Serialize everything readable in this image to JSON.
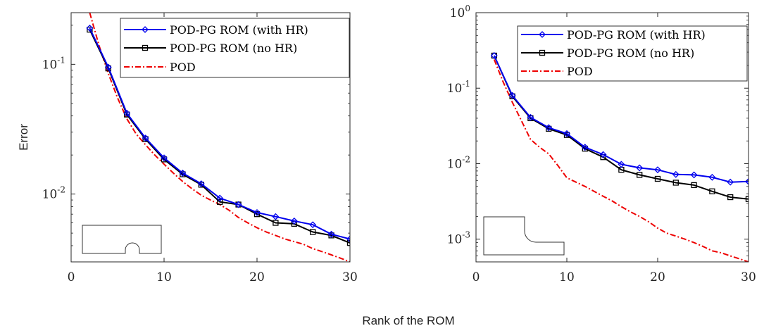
{
  "figure": {
    "ylabel": "Error",
    "xlabel": "Rank of the ROM"
  },
  "legend_labels": [
    "POD-PG ROM (with HR)",
    "POD-PG ROM (no HR)",
    "POD"
  ],
  "colors": {
    "with_hr": "#0000ee",
    "no_hr": "#000000",
    "pod": "#ee0000",
    "axes": "#262626"
  },
  "chart_data": [
    {
      "type": "line",
      "scale_y": "log",
      "xlim": [
        0,
        30
      ],
      "ylim": [
        0.003,
        0.25
      ],
      "xticks": [
        0,
        10,
        20,
        30
      ],
      "yticks": [
        {
          "value": 0.01,
          "exp": "-2"
        },
        {
          "value": 0.1,
          "exp": "-1"
        }
      ],
      "legend_placement": "top-right",
      "grid": false,
      "inset": "plate-with-semicircular-notch",
      "series": [
        {
          "name": "POD-PG ROM (with HR)",
          "style": "blue-diamond",
          "x": [
            2,
            4,
            6,
            8,
            10,
            12,
            14,
            16,
            18,
            20,
            22,
            24,
            26,
            28,
            30
          ],
          "y": [
            0.19,
            0.095,
            0.042,
            0.027,
            0.019,
            0.0145,
            0.012,
            0.0093,
            0.0083,
            0.0072,
            0.0067,
            0.0062,
            0.0058,
            0.0049,
            0.0045
          ]
        },
        {
          "name": "POD-PG ROM (no HR)",
          "style": "black-square",
          "x": [
            2,
            4,
            6,
            8,
            10,
            12,
            14,
            16,
            18,
            20,
            22,
            24,
            26,
            28,
            30
          ],
          "y": [
            0.185,
            0.093,
            0.041,
            0.0265,
            0.0185,
            0.0142,
            0.0118,
            0.0087,
            0.0083,
            0.007,
            0.006,
            0.0059,
            0.0051,
            0.0048,
            0.0042
          ]
        },
        {
          "name": "POD",
          "style": "red-dashdot",
          "x": [
            2,
            3,
            4,
            5,
            6,
            7,
            8,
            9,
            10,
            11,
            12,
            13,
            14,
            15,
            16,
            17,
            18,
            19,
            20,
            21,
            22,
            23,
            24,
            25,
            26,
            27,
            28,
            29,
            30
          ],
          "y": [
            0.25,
            0.14,
            0.085,
            0.055,
            0.038,
            0.029,
            0.024,
            0.02,
            0.017,
            0.0145,
            0.0125,
            0.011,
            0.0098,
            0.009,
            0.0083,
            0.0075,
            0.0066,
            0.006,
            0.0055,
            0.0051,
            0.0048,
            0.0045,
            0.0043,
            0.0041,
            0.0038,
            0.0036,
            0.0034,
            0.0032,
            0.003
          ]
        }
      ]
    },
    {
      "type": "line",
      "scale_y": "log",
      "xlim": [
        0,
        30
      ],
      "ylim": [
        0.0005,
        1
      ],
      "xticks": [
        0,
        10,
        20,
        30
      ],
      "yticks": [
        {
          "value": 0.001,
          "exp": "-3"
        },
        {
          "value": 0.01,
          "exp": "-2"
        },
        {
          "value": 0.1,
          "exp": "-1"
        },
        {
          "value": 1,
          "exp": "0"
        }
      ],
      "legend_placement": "top-right",
      "grid": false,
      "inset": "stepped-plate-with-fillet",
      "series": [
        {
          "name": "POD-PG ROM (with HR)",
          "style": "blue-diamond",
          "x": [
            2,
            4,
            6,
            8,
            10,
            12,
            14,
            16,
            18,
            20,
            22,
            24,
            26,
            28,
            30
          ],
          "y": [
            0.27,
            0.08,
            0.041,
            0.03,
            0.025,
            0.0165,
            0.0132,
            0.0098,
            0.0088,
            0.0083,
            0.0072,
            0.0071,
            0.0066,
            0.0057,
            0.0058
          ]
        },
        {
          "name": "POD-PG ROM (no HR)",
          "style": "black-square",
          "x": [
            2,
            4,
            6,
            8,
            10,
            12,
            14,
            16,
            18,
            20,
            22,
            24,
            26,
            28,
            30
          ],
          "y": [
            0.27,
            0.078,
            0.04,
            0.029,
            0.024,
            0.0158,
            0.0122,
            0.0083,
            0.0071,
            0.0063,
            0.0056,
            0.0052,
            0.0043,
            0.0036,
            0.0034
          ]
        },
        {
          "name": "POD",
          "style": "red-dashdot",
          "x": [
            2,
            3,
            4,
            5,
            6,
            7,
            8,
            9,
            10,
            11,
            12,
            13,
            14,
            15,
            16,
            17,
            18,
            19,
            20,
            21,
            22,
            23,
            24,
            25,
            26,
            27,
            28,
            29,
            30
          ],
          "y": [
            0.24,
            0.12,
            0.065,
            0.037,
            0.021,
            0.0165,
            0.0135,
            0.0095,
            0.0065,
            0.0057,
            0.005,
            0.0043,
            0.0037,
            0.0032,
            0.0027,
            0.0023,
            0.002,
            0.0017,
            0.0014,
            0.0012,
            0.0011,
            0.001,
            0.0009,
            0.0008,
            0.0007,
            0.00066,
            0.0006,
            0.00055,
            0.0005
          ]
        }
      ]
    }
  ]
}
